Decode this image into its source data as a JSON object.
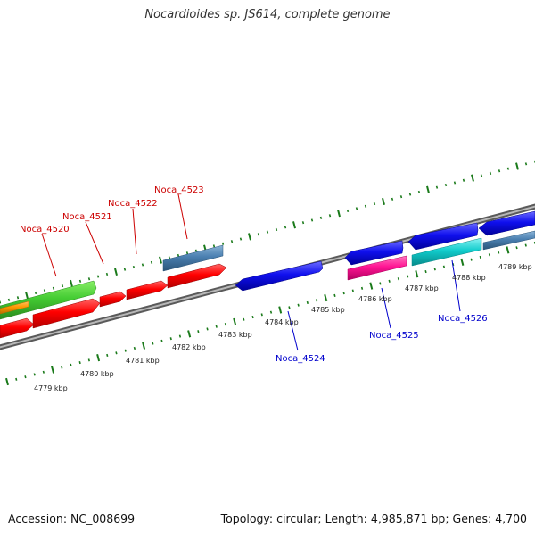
{
  "title": "Nocardioides sp. JS614, complete genome",
  "accession": "Accession: NC_008699",
  "summary": "Topology: circular; Length: 4,985,871 bp; Genes: 4,700",
  "tick_labels": [
    "4779 kbp",
    "4780 kbp",
    "4781 kbp",
    "4782 kbp",
    "4783 kbp",
    "4784 kbp",
    "4785 kbp",
    "4786 kbp",
    "4787 kbp",
    "4788 kbp",
    "4789 kbp"
  ],
  "genes": [
    {
      "label": "Noca_4520",
      "strand": "forward",
      "color": "#ff0000"
    },
    {
      "label": "Noca_4521",
      "strand": "forward",
      "color": "#ff0000"
    },
    {
      "label": "Noca_4522",
      "strand": "forward",
      "color": "#ff0000"
    },
    {
      "label": "Noca_4523",
      "strand": "forward",
      "color": "#ff0000"
    },
    {
      "label": "Noca_4524",
      "strand": "reverse",
      "color": "#0000cc"
    },
    {
      "label": "Noca_4525",
      "strand": "reverse",
      "color": "#0000cc"
    },
    {
      "label": "Noca_4526",
      "strand": "reverse",
      "color": "#0000cc"
    }
  ],
  "colors": {
    "forward_label": "#cc0000",
    "reverse_label": "#0000cc",
    "ticks": "#1a7a1a",
    "backbone": "#8c8c8c",
    "feature_green": "#44cc33",
    "feature_orange": "#ff9900",
    "feature_steelblue": "#4a7fb0",
    "feature_magenta": "#ff1493",
    "feature_cyan": "#11cccc",
    "feature_blue": "#1010ee"
  }
}
